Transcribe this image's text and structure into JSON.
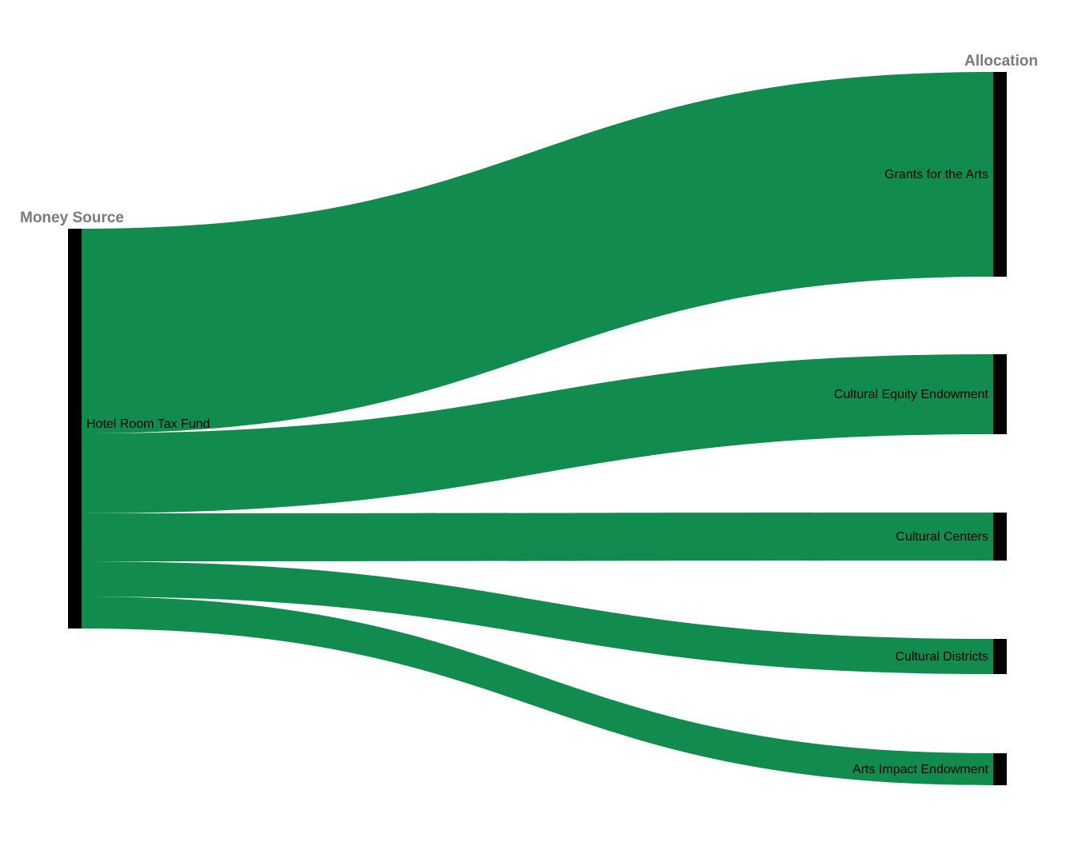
{
  "chart_data": {
    "type": "sankey",
    "columns": [
      "Money Source",
      "Allocation"
    ],
    "source": {
      "name": "Hotel Room Tax Fund",
      "value": 100
    },
    "targets": [
      {
        "name": "Grants for the Arts",
        "value": 51.2
      },
      {
        "name": "Cultural Equity Endowment",
        "value": 20.0
      },
      {
        "name": "Cultural Centers",
        "value": 12.0
      },
      {
        "name": "Cultural Districts",
        "value": 8.8
      },
      {
        "name": "Arts Impact Endowment",
        "value": 8.0
      }
    ],
    "colors": {
      "link": "#128b4e",
      "node": "#000000",
      "column_title": "#7a7a7a"
    }
  }
}
